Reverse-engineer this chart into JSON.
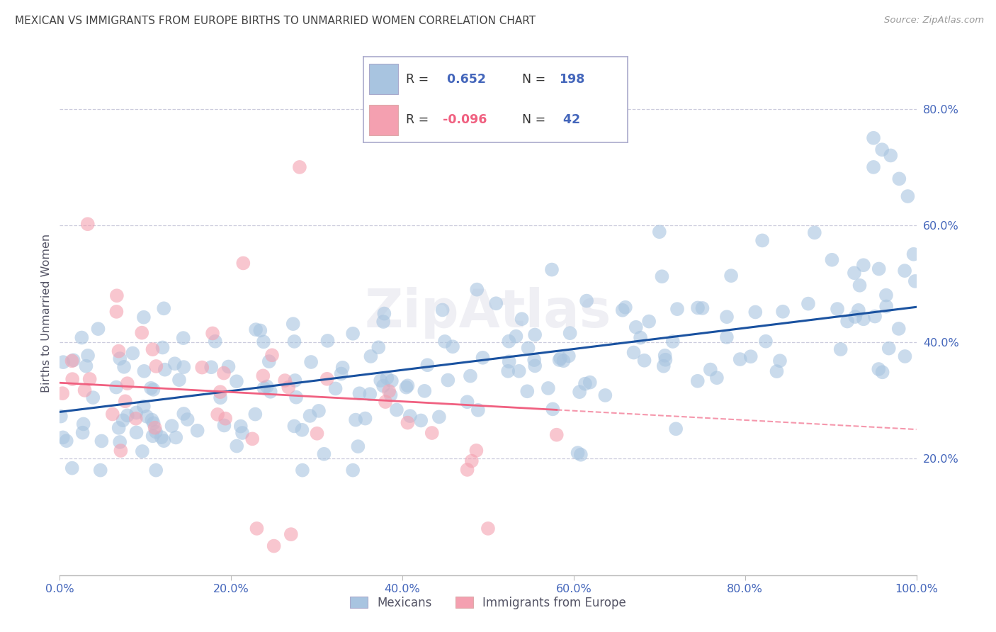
{
  "title": "MEXICAN VS IMMIGRANTS FROM EUROPE BIRTHS TO UNMARRIED WOMEN CORRELATION CHART",
  "source": "Source: ZipAtlas.com",
  "ylabel": "Births to Unmarried Women",
  "legend_labels": [
    "Mexicans",
    "Immigrants from Europe"
  ],
  "blue_R": "0.652",
  "blue_N": "198",
  "pink_R": "-0.096",
  "pink_N": "42",
  "blue_color": "#A8C4E0",
  "pink_color": "#F4A0B0",
  "blue_line_color": "#1A52A0",
  "pink_line_color": "#F06080",
  "grid_color": "#CCCCDD",
  "title_color": "#444444",
  "axis_label_color": "#555566",
  "tick_label_color": "#4466BB",
  "watermark": "ZipAtlas",
  "xlim": [
    0,
    100
  ],
  "ylim": [
    0,
    90
  ],
  "x_ticks": [
    0,
    20,
    40,
    60,
    80,
    100
  ],
  "x_tick_labels": [
    "0.0%",
    "20.0%",
    "40.0%",
    "60.0%",
    "80.0%",
    "100.0%"
  ],
  "y_ticks": [
    20,
    40,
    60,
    80
  ],
  "y_tick_labels": [
    "20.0%",
    "40.0%",
    "60.0%",
    "80.0%"
  ],
  "blue_line_intercept": 28.0,
  "blue_line_slope": 0.18,
  "pink_line_intercept": 33.0,
  "pink_line_slope": -0.08,
  "pink_solid_end": 58
}
